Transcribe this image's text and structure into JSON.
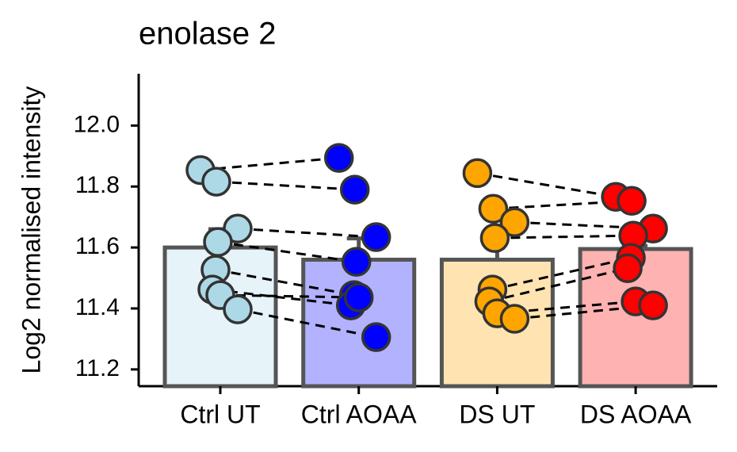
{
  "chart_data": {
    "type": "bar",
    "title": "enolase 2",
    "y_label": "Log2 normalised intensity",
    "categories": [
      "Ctrl UT",
      "Ctrl AOAA",
      "DS UT",
      "DS AOAA"
    ],
    "values": [
      11.6,
      11.56,
      11.56,
      11.595
    ],
    "errors": [
      0.06,
      0.07,
      0.07,
      0.01
    ],
    "colors": [
      "#add8e6",
      "#0000ff",
      "#ffa500",
      "#ff0000"
    ],
    "bar_colors": [
      "#e6f3f9",
      "#b2b2ff",
      "#ffe4b2",
      "#ffb2b2"
    ],
    "points": [
      [
        11.854,
        11.816,
        11.662,
        11.618,
        11.527,
        11.462,
        11.444,
        11.397
      ],
      [
        11.894,
        11.79,
        11.634,
        11.553,
        11.444,
        11.41,
        11.436,
        11.306
      ],
      [
        11.844,
        11.727,
        11.683,
        11.631,
        11.462,
        11.423,
        11.384,
        11.366
      ],
      [
        11.766,
        11.753,
        11.662,
        11.639,
        11.566,
        11.532,
        11.423,
        11.41
      ]
    ],
    "paired_lines": true,
    "ylim": [
      11.145,
      12.17
    ],
    "yticks": [
      11.2,
      11.4,
      11.6,
      11.8,
      {
        "value": 12,
        "label": "12.0"
      }
    ]
  }
}
